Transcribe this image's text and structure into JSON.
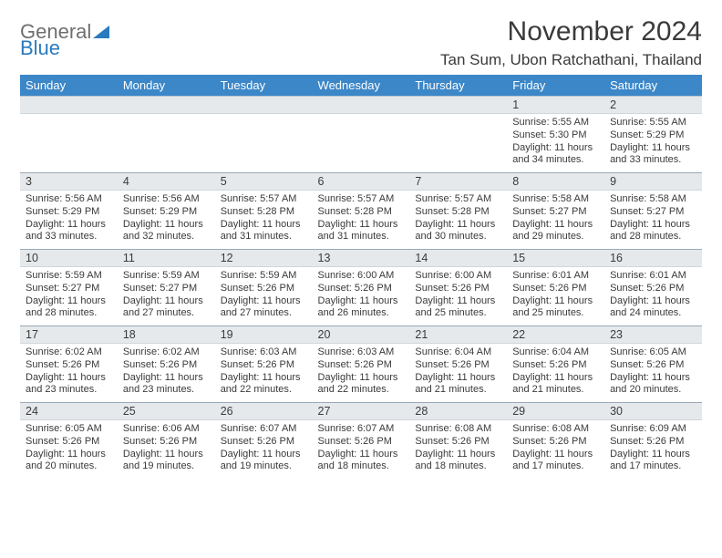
{
  "logo": {
    "word1": "General",
    "word2": "Blue"
  },
  "title": "November 2024",
  "location": "Tan Sum, Ubon Ratchathani, Thailand",
  "colors": {
    "header_bg": "#3b87c8",
    "header_fg": "#ffffff",
    "daynum_bg": "#e6e9ec",
    "text": "#3a3a3a",
    "logo_gray": "#6f6f6f",
    "logo_blue": "#2a7ac0"
  },
  "weekdays": [
    "Sunday",
    "Monday",
    "Tuesday",
    "Wednesday",
    "Thursday",
    "Friday",
    "Saturday"
  ],
  "weeks": [
    [
      null,
      null,
      null,
      null,
      null,
      {
        "n": "1",
        "sr": "5:55 AM",
        "ss": "5:30 PM",
        "dl": "Daylight: 11 hours and 34 minutes."
      },
      {
        "n": "2",
        "sr": "5:55 AM",
        "ss": "5:29 PM",
        "dl": "Daylight: 11 hours and 33 minutes."
      }
    ],
    [
      {
        "n": "3",
        "sr": "5:56 AM",
        "ss": "5:29 PM",
        "dl": "Daylight: 11 hours and 33 minutes."
      },
      {
        "n": "4",
        "sr": "5:56 AM",
        "ss": "5:29 PM",
        "dl": "Daylight: 11 hours and 32 minutes."
      },
      {
        "n": "5",
        "sr": "5:57 AM",
        "ss": "5:28 PM",
        "dl": "Daylight: 11 hours and 31 minutes."
      },
      {
        "n": "6",
        "sr": "5:57 AM",
        "ss": "5:28 PM",
        "dl": "Daylight: 11 hours and 31 minutes."
      },
      {
        "n": "7",
        "sr": "5:57 AM",
        "ss": "5:28 PM",
        "dl": "Daylight: 11 hours and 30 minutes."
      },
      {
        "n": "8",
        "sr": "5:58 AM",
        "ss": "5:27 PM",
        "dl": "Daylight: 11 hours and 29 minutes."
      },
      {
        "n": "9",
        "sr": "5:58 AM",
        "ss": "5:27 PM",
        "dl": "Daylight: 11 hours and 28 minutes."
      }
    ],
    [
      {
        "n": "10",
        "sr": "5:59 AM",
        "ss": "5:27 PM",
        "dl": "Daylight: 11 hours and 28 minutes."
      },
      {
        "n": "11",
        "sr": "5:59 AM",
        "ss": "5:27 PM",
        "dl": "Daylight: 11 hours and 27 minutes."
      },
      {
        "n": "12",
        "sr": "5:59 AM",
        "ss": "5:26 PM",
        "dl": "Daylight: 11 hours and 27 minutes."
      },
      {
        "n": "13",
        "sr": "6:00 AM",
        "ss": "5:26 PM",
        "dl": "Daylight: 11 hours and 26 minutes."
      },
      {
        "n": "14",
        "sr": "6:00 AM",
        "ss": "5:26 PM",
        "dl": "Daylight: 11 hours and 25 minutes."
      },
      {
        "n": "15",
        "sr": "6:01 AM",
        "ss": "5:26 PM",
        "dl": "Daylight: 11 hours and 25 minutes."
      },
      {
        "n": "16",
        "sr": "6:01 AM",
        "ss": "5:26 PM",
        "dl": "Daylight: 11 hours and 24 minutes."
      }
    ],
    [
      {
        "n": "17",
        "sr": "6:02 AM",
        "ss": "5:26 PM",
        "dl": "Daylight: 11 hours and 23 minutes."
      },
      {
        "n": "18",
        "sr": "6:02 AM",
        "ss": "5:26 PM",
        "dl": "Daylight: 11 hours and 23 minutes."
      },
      {
        "n": "19",
        "sr": "6:03 AM",
        "ss": "5:26 PM",
        "dl": "Daylight: 11 hours and 22 minutes."
      },
      {
        "n": "20",
        "sr": "6:03 AM",
        "ss": "5:26 PM",
        "dl": "Daylight: 11 hours and 22 minutes."
      },
      {
        "n": "21",
        "sr": "6:04 AM",
        "ss": "5:26 PM",
        "dl": "Daylight: 11 hours and 21 minutes."
      },
      {
        "n": "22",
        "sr": "6:04 AM",
        "ss": "5:26 PM",
        "dl": "Daylight: 11 hours and 21 minutes."
      },
      {
        "n": "23",
        "sr": "6:05 AM",
        "ss": "5:26 PM",
        "dl": "Daylight: 11 hours and 20 minutes."
      }
    ],
    [
      {
        "n": "24",
        "sr": "6:05 AM",
        "ss": "5:26 PM",
        "dl": "Daylight: 11 hours and 20 minutes."
      },
      {
        "n": "25",
        "sr": "6:06 AM",
        "ss": "5:26 PM",
        "dl": "Daylight: 11 hours and 19 minutes."
      },
      {
        "n": "26",
        "sr": "6:07 AM",
        "ss": "5:26 PM",
        "dl": "Daylight: 11 hours and 19 minutes."
      },
      {
        "n": "27",
        "sr": "6:07 AM",
        "ss": "5:26 PM",
        "dl": "Daylight: 11 hours and 18 minutes."
      },
      {
        "n": "28",
        "sr": "6:08 AM",
        "ss": "5:26 PM",
        "dl": "Daylight: 11 hours and 18 minutes."
      },
      {
        "n": "29",
        "sr": "6:08 AM",
        "ss": "5:26 PM",
        "dl": "Daylight: 11 hours and 17 minutes."
      },
      {
        "n": "30",
        "sr": "6:09 AM",
        "ss": "5:26 PM",
        "dl": "Daylight: 11 hours and 17 minutes."
      }
    ]
  ],
  "labels": {
    "sunrise_prefix": "Sunrise: ",
    "sunset_prefix": "Sunset: "
  }
}
